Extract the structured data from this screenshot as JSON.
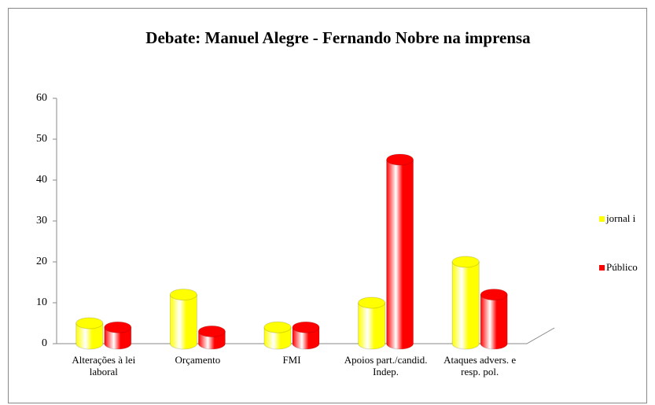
{
  "chart_data": {
    "type": "bar3d",
    "title": "Debate: Manuel Alegre - Fernando Nobre na imprensa",
    "categories": [
      "Alterações à lei laboral",
      "Orçamento",
      "FMI",
      "Apoios part./candid. Indep.",
      "Ataques advers. e resp. pol."
    ],
    "series": [
      {
        "name": "jornal i",
        "color": "#ffff00",
        "values": [
          5,
          12,
          4,
          10,
          20
        ]
      },
      {
        "name": "Público",
        "color": "#ff0000",
        "values": [
          4,
          3,
          4,
          45,
          12
        ]
      }
    ],
    "ylim": [
      0,
      60
    ],
    "yticks": [
      0,
      10,
      20,
      30,
      40,
      50,
      60
    ],
    "grid": false,
    "legend": "right"
  }
}
